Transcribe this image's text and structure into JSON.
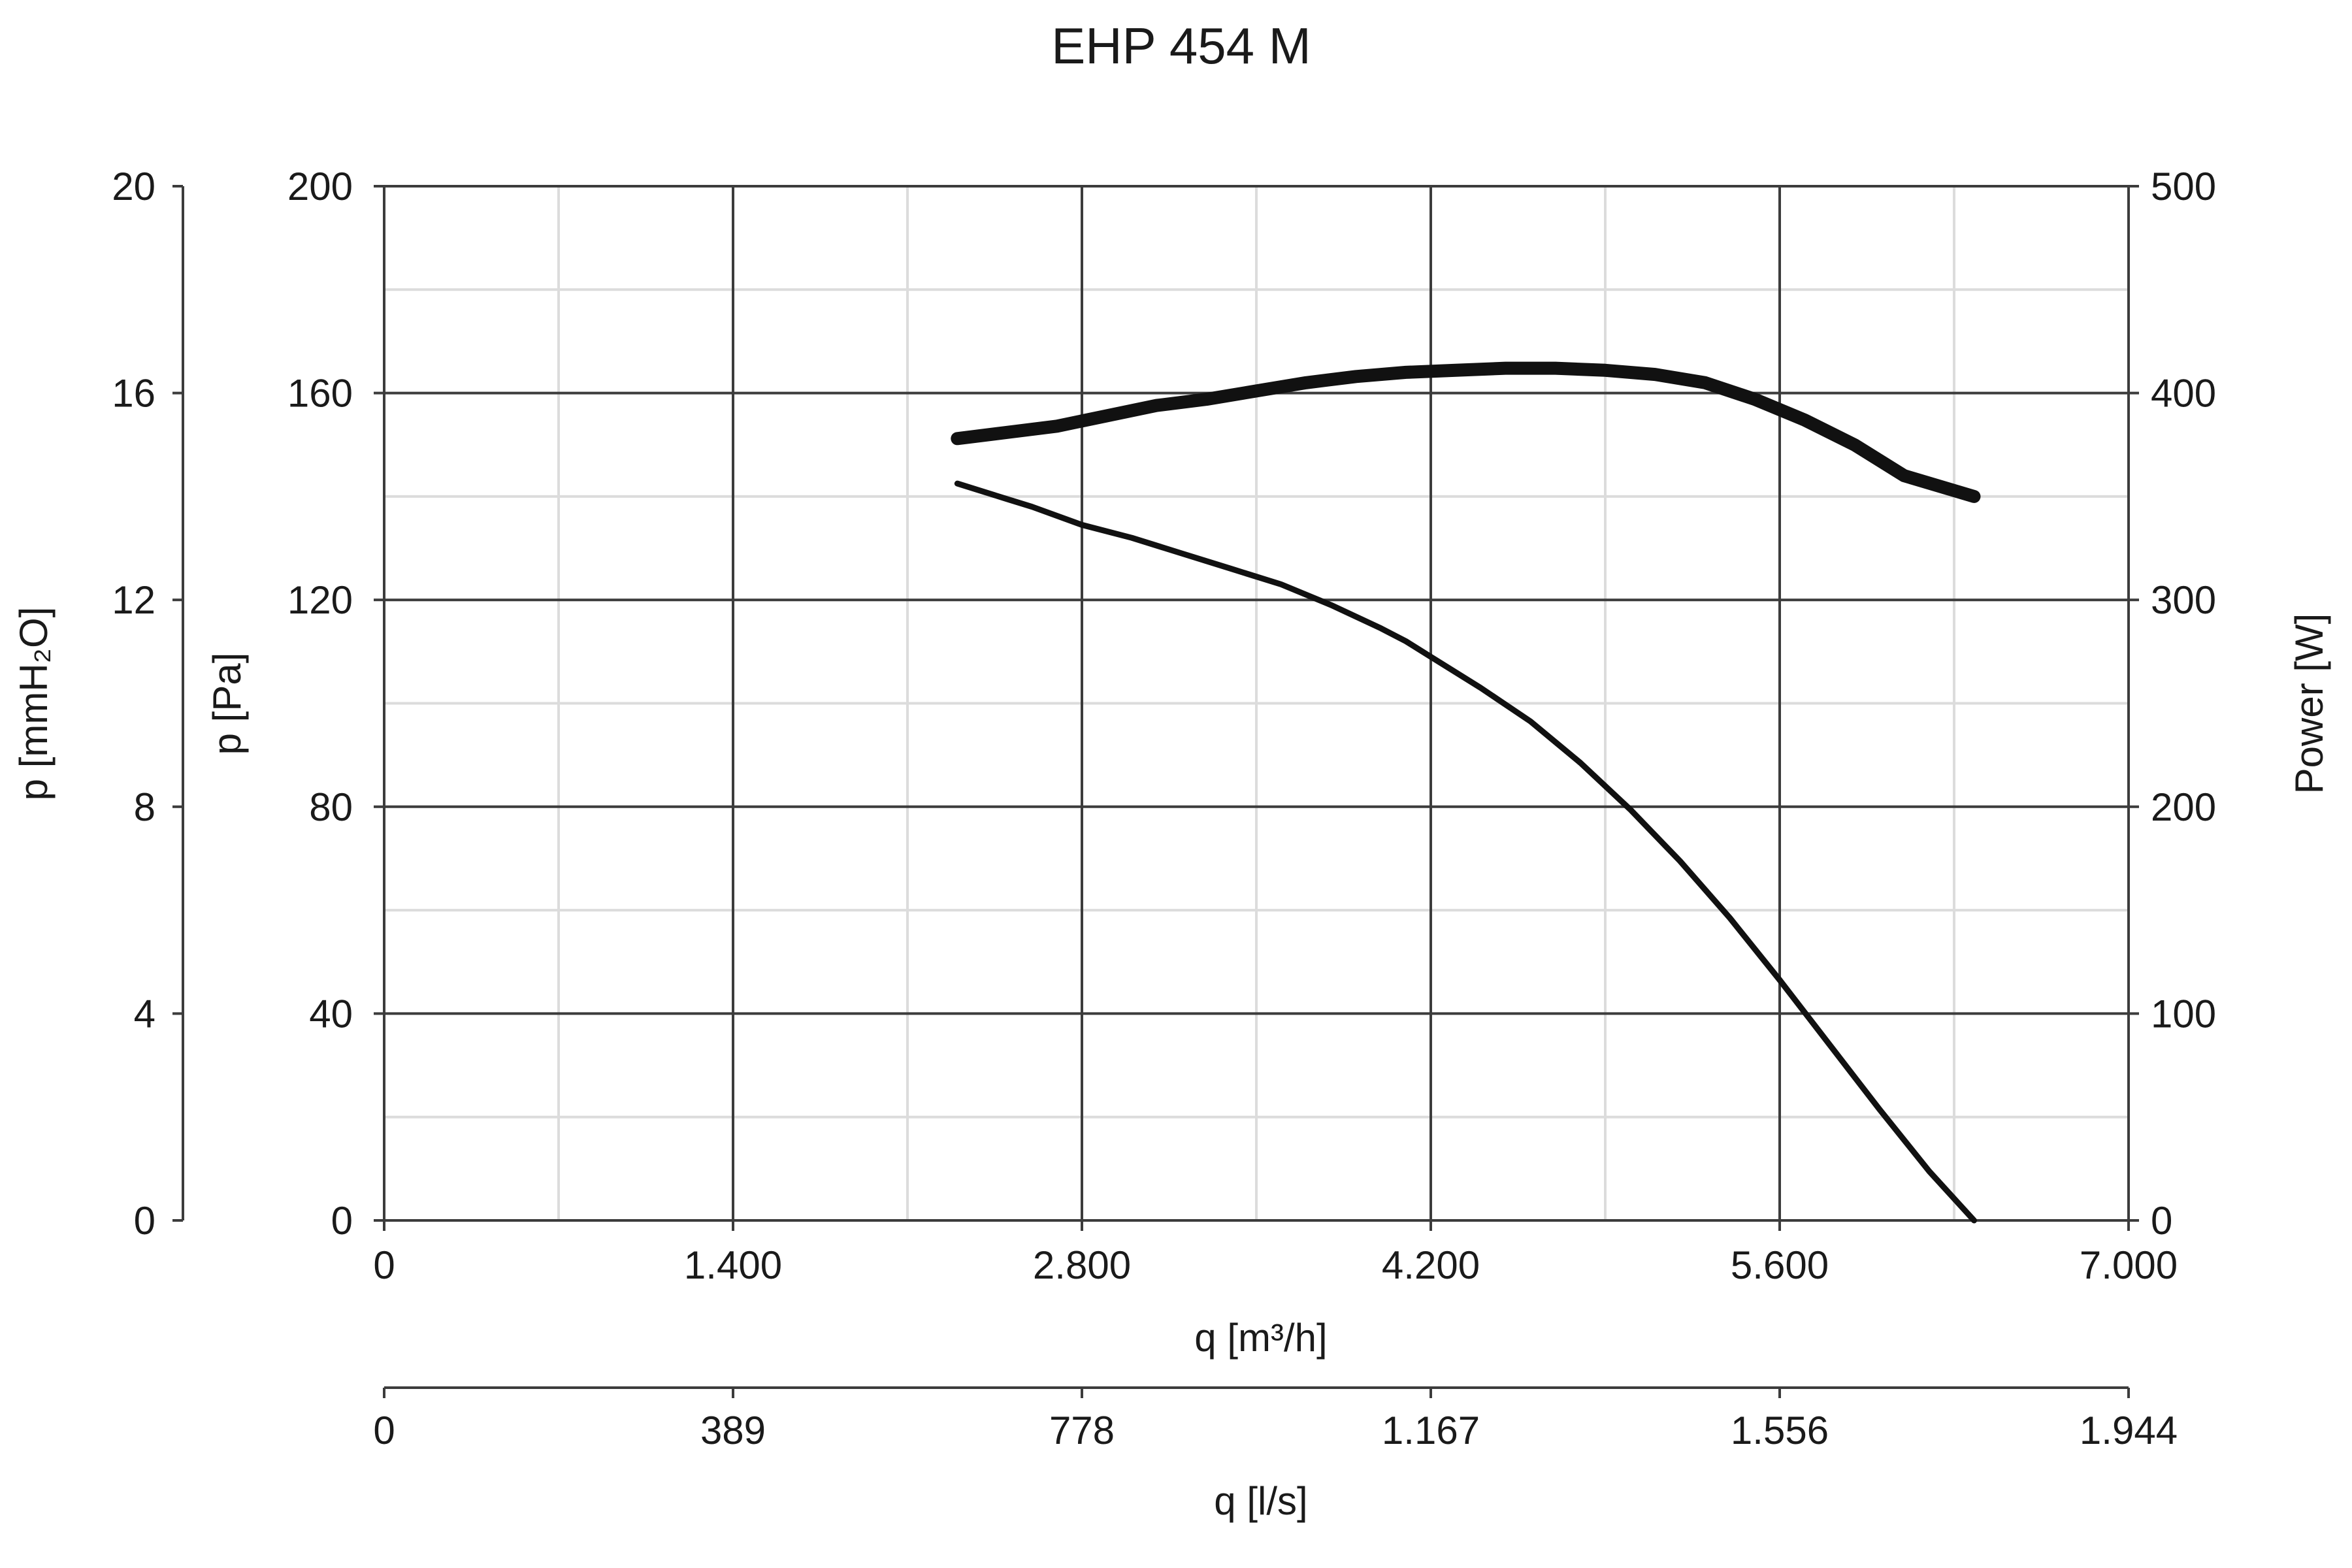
{
  "chart_data": {
    "type": "line",
    "title": "EHP 454 M",
    "x_axis": {
      "label": "q [m³/h]",
      "range": [
        0,
        7000
      ],
      "tick_values": [
        0,
        1400,
        2800,
        4200,
        5600,
        7000
      ],
      "tick_labels": [
        "0",
        "1.400",
        "2.800",
        "4.200",
        "5.600",
        "7.000"
      ],
      "minor_grid": [
        700,
        2100,
        3500,
        4900,
        6300
      ]
    },
    "x2_axis": {
      "label": "q [l/s]",
      "range": [
        0,
        1944
      ],
      "tick_labels": [
        "0",
        "389",
        "778",
        "1.167",
        "1.556",
        "1.944"
      ]
    },
    "y_axis": {
      "label": "p [Pa]",
      "range": [
        0,
        200
      ],
      "tick_values": [
        0,
        40,
        80,
        120,
        160,
        200
      ],
      "tick_labels": [
        "0",
        "40",
        "80",
        "120",
        "160",
        "200"
      ],
      "minor_grid": [
        20,
        60,
        100,
        140,
        180
      ]
    },
    "y_axis_outer": {
      "label": "p [mmH₂O]",
      "range": [
        0,
        20
      ],
      "tick_labels": [
        "0",
        "4",
        "8",
        "12",
        "16",
        "20"
      ]
    },
    "y_axis_right": {
      "label": "Power [W]",
      "range": [
        0,
        500
      ],
      "tick_labels": [
        "0",
        "100",
        "200",
        "300",
        "400",
        "500"
      ]
    },
    "grid": true,
    "series": [
      {
        "role": "pressure",
        "axis": "left",
        "x": [
          2300,
          2500,
          2600,
          2800,
          3000,
          3200,
          3400,
          3600,
          3800,
          4000,
          4100,
          4200,
          4400,
          4600,
          4800,
          5000,
          5200,
          5400,
          5600,
          5800,
          6000,
          6200,
          6380
        ],
        "y": [
          142.5,
          139.5,
          138,
          134.5,
          132,
          129,
          126,
          123,
          119,
          114.5,
          112,
          109,
          103,
          96.5,
          88.5,
          79.5,
          69.5,
          58.5,
          46.5,
          34,
          21.5,
          9.5,
          0
        ]
      },
      {
        "role": "power",
        "axis": "right",
        "x": [
          2300,
          2500,
          2700,
          2900,
          3100,
          3300,
          3500,
          3700,
          3900,
          4100,
          4300,
          4500,
          4700,
          4900,
          5100,
          5300,
          5500,
          5700,
          5900,
          6100,
          6380
        ],
        "y": [
          378,
          381,
          384,
          389,
          394,
          397,
          401,
          405,
          408,
          410,
          411,
          412,
          412,
          411,
          409,
          405,
          397,
          387,
          375,
          360,
          350
        ]
      }
    ]
  }
}
